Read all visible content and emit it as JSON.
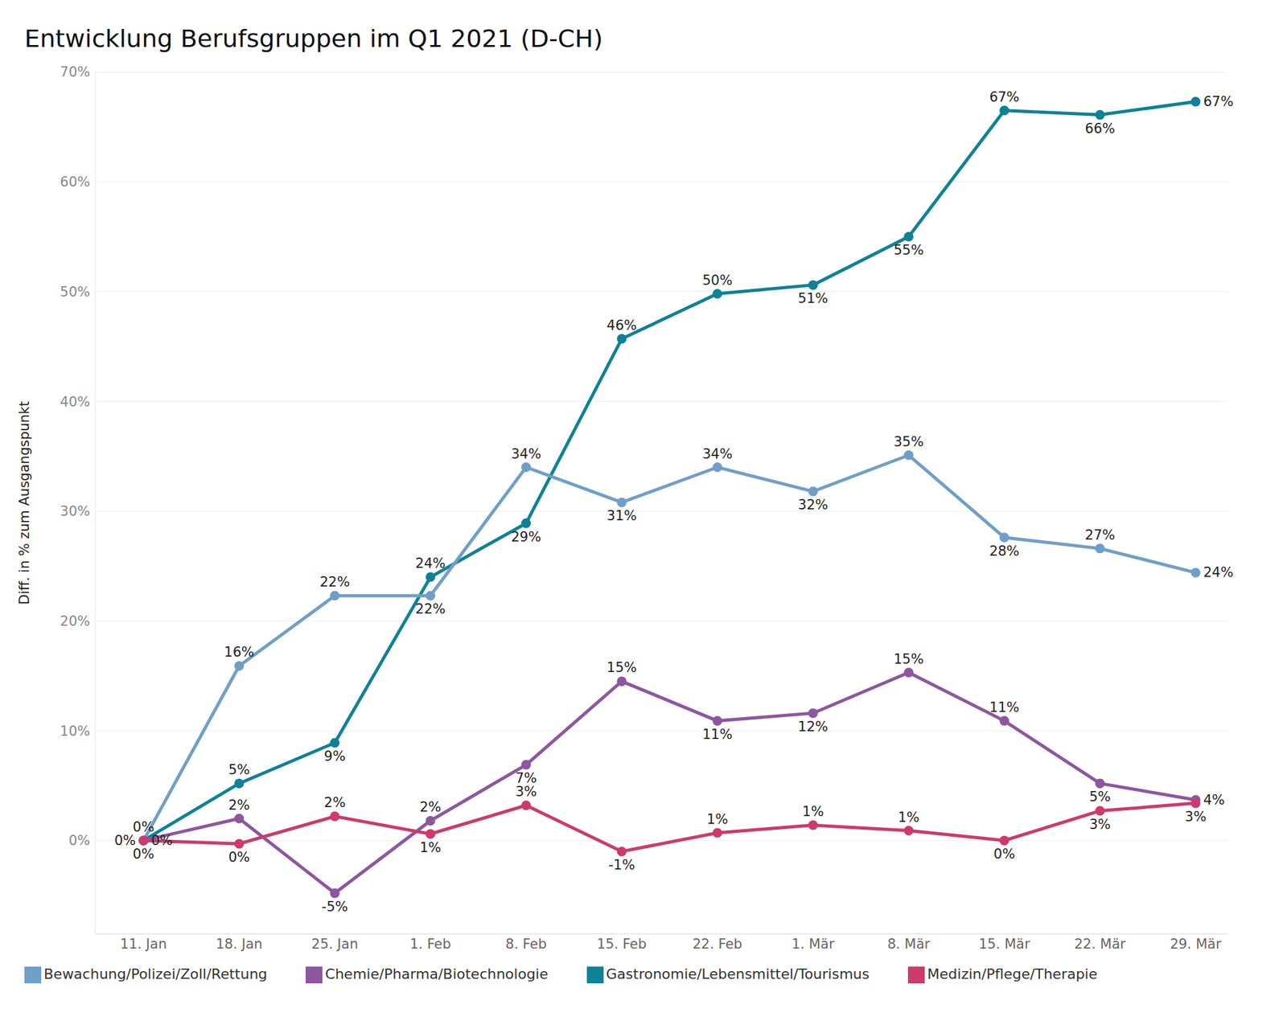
{
  "chart_data": {
    "type": "line",
    "title": "Entwicklung Berufsgruppen im Q1 2021 (D-CH)",
    "y_label": "Diff. in % zum Ausgangspunkt",
    "categories": [
      "11. Jan",
      "18. Jan",
      "25. Jan",
      "1. Feb",
      "8. Feb",
      "15. Feb",
      "22. Feb",
      "1. Mär",
      "8. Mär",
      "15. Mär",
      "22. Mär",
      "29. Mär"
    ],
    "series": [
      {
        "name": "Gastronomie/Lebensmittel/Tourismus",
        "color": "#0e8296",
        "values": [
          0,
          5.2,
          8.9,
          24.0,
          28.9,
          45.7,
          49.8,
          50.6,
          55.0,
          66.5,
          66.1,
          67.3
        ],
        "value_labels": [
          "0%",
          "5%",
          "9%",
          "24%",
          "29%",
          "46%",
          "50%",
          "51%",
          "55%",
          "67%",
          "66%",
          "67%"
        ]
      },
      {
        "name": "Bewachung/Polizei/Zoll/Rettung",
        "color": "#6f9fc8",
        "values": [
          0,
          15.9,
          22.3,
          22.3,
          34.0,
          30.8,
          34.0,
          31.8,
          35.1,
          27.6,
          26.6,
          24.4
        ],
        "value_labels": [
          "0%",
          "16%",
          "22%",
          "22%",
          "34%",
          "31%",
          "34%",
          "32%",
          "35%",
          "28%",
          "27%",
          "24%"
        ]
      },
      {
        "name": "Chemie/Pharma/Biotechnologie",
        "color": "#8e56a0",
        "values": [
          0,
          2.0,
          -4.8,
          1.8,
          6.9,
          14.5,
          10.9,
          11.6,
          15.3,
          10.9,
          5.2,
          3.7
        ],
        "value_labels": [
          "0%",
          "2%",
          "-5%",
          "2%",
          "7%",
          "15%",
          "11%",
          "12%",
          "15%",
          "11%",
          "5%",
          "4%"
        ]
      },
      {
        "name": "Medizin/Pflege/Therapie",
        "color": "#cd3a6b",
        "values": [
          0,
          -0.3,
          2.2,
          0.6,
          3.2,
          -1.0,
          0.7,
          1.4,
          0.9,
          0.0,
          2.7,
          3.4
        ],
        "value_labels": [
          "0%",
          "0%",
          "2%",
          "1%",
          "3%",
          "-1%",
          "1%",
          "1%",
          "1%",
          "0%",
          "3%",
          "3%"
        ]
      }
    ],
    "ylim": [
      -8.5,
      70
    ],
    "yticks": [
      {
        "value": 0,
        "label": "0%"
      },
      {
        "value": 10,
        "label": "10%"
      },
      {
        "value": 20,
        "label": "20%"
      },
      {
        "value": 30,
        "label": "30%"
      },
      {
        "value": 40,
        "label": "40%"
      },
      {
        "value": 50,
        "label": "50%"
      },
      {
        "value": 60,
        "label": "60%"
      },
      {
        "value": 70,
        "label": "70%"
      }
    ],
    "grid": true,
    "legend": "bottom-left",
    "data_labels": true,
    "marker": "circle"
  }
}
